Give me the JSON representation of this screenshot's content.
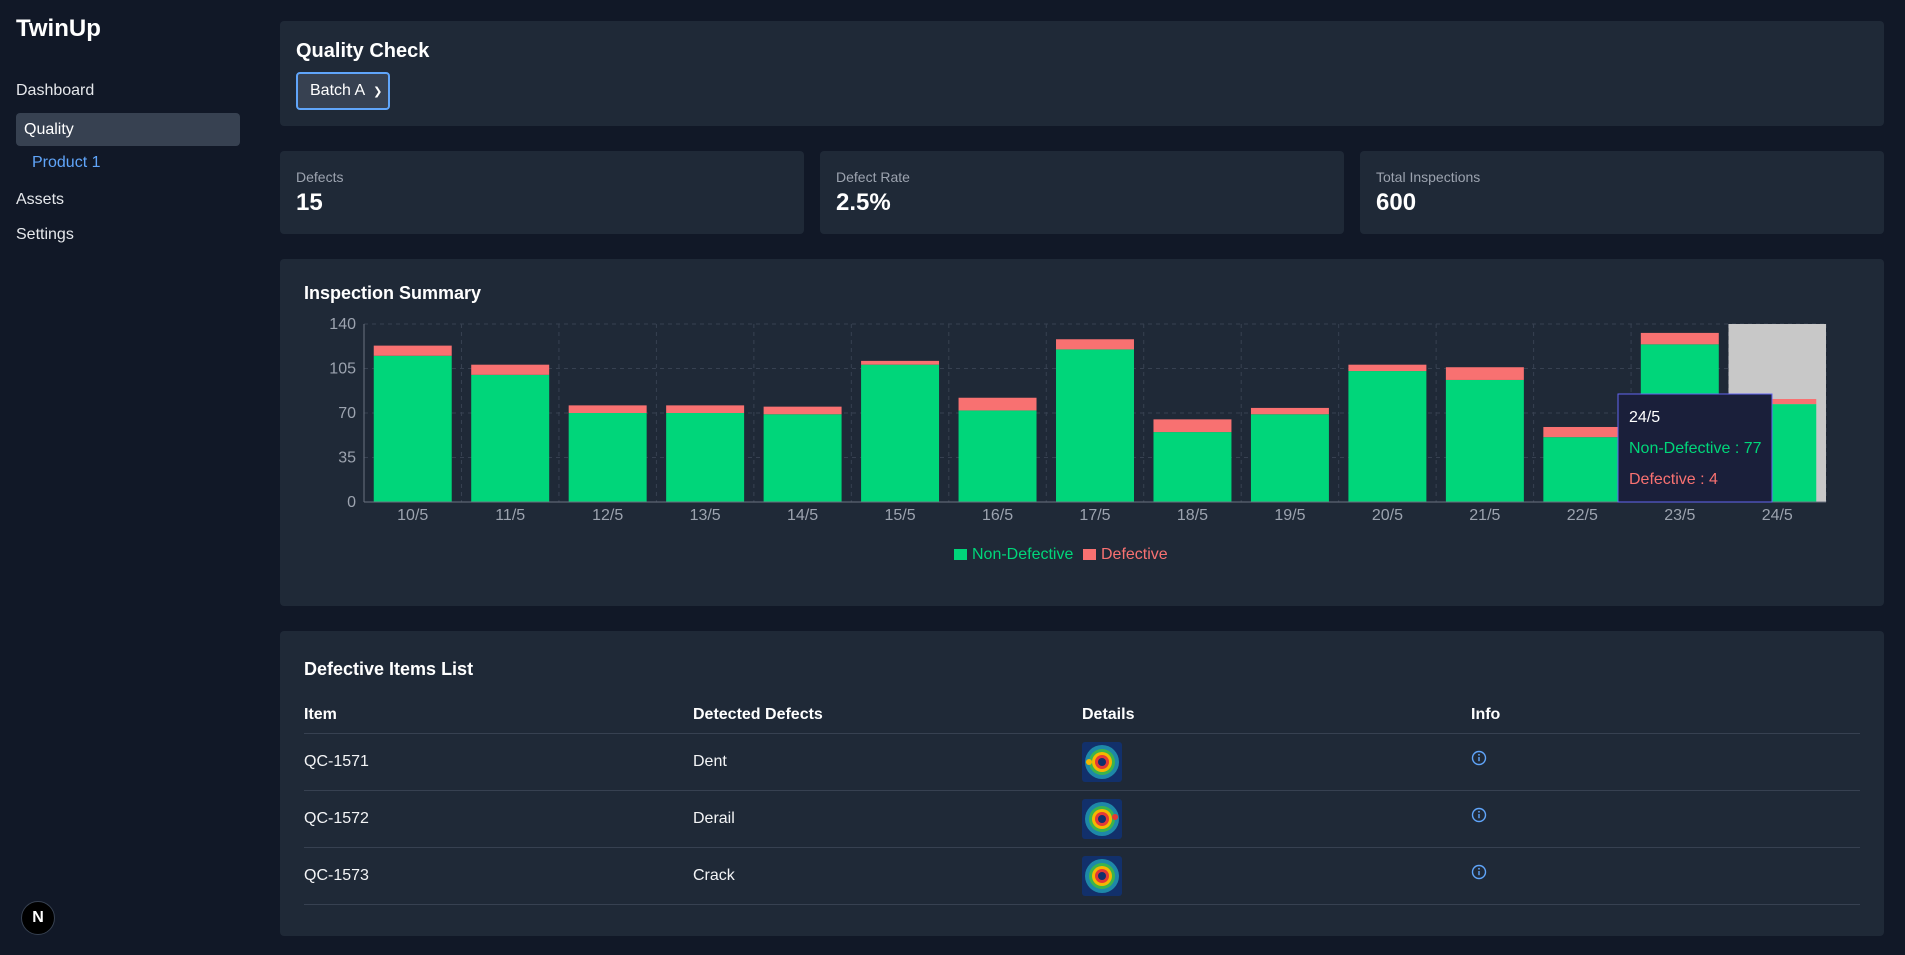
{
  "sidebar": {
    "brand": "TwinUp",
    "items": [
      {
        "label": "Dashboard"
      },
      {
        "label": "Quality"
      },
      {
        "label": "Product 1"
      },
      {
        "label": "Assets"
      },
      {
        "label": "Settings"
      }
    ],
    "badge": "N"
  },
  "header": {
    "title": "Quality Check",
    "batch_selected": "Batch A"
  },
  "stats": [
    {
      "label": "Defects",
      "value": "15"
    },
    {
      "label": "Defect Rate",
      "value": "2.5%"
    },
    {
      "label": "Total Inspections",
      "value": "600"
    }
  ],
  "chart": {
    "title": "Inspection Summary",
    "tooltip": {
      "date": "24/5",
      "line1": "Non-Defective : 77",
      "line2": "Defective : 4"
    }
  },
  "chart_data": {
    "type": "bar",
    "stacked": true,
    "categories": [
      "10/5",
      "11/5",
      "12/5",
      "13/5",
      "14/5",
      "15/5",
      "16/5",
      "17/5",
      "18/5",
      "19/5",
      "20/5",
      "21/5",
      "22/5",
      "23/5",
      "24/5"
    ],
    "series": [
      {
        "name": "Non-Defective",
        "color": "#00d67a",
        "values": [
          115,
          100,
          70,
          70,
          69,
          108,
          72,
          120,
          55,
          69,
          103,
          96,
          51,
          124,
          77
        ]
      },
      {
        "name": "Defective",
        "color": "#f87171",
        "values": [
          8,
          8,
          6,
          6,
          6,
          3,
          10,
          8,
          10,
          5,
          5,
          10,
          8,
          9,
          4
        ]
      }
    ],
    "yticks": [
      0,
      35,
      70,
      105,
      140
    ],
    "ylim": [
      0,
      140
    ],
    "grid": true,
    "highlight_category": "24/5",
    "legend_position": "bottom"
  },
  "table": {
    "title": "Defective Items List",
    "headers": [
      "Item",
      "Detected Defects",
      "Details",
      "Info"
    ],
    "rows": [
      {
        "item": "QC-1571",
        "defect": "Dent"
      },
      {
        "item": "QC-1572",
        "defect": "Derail"
      },
      {
        "item": "QC-1573",
        "defect": "Crack"
      }
    ]
  }
}
